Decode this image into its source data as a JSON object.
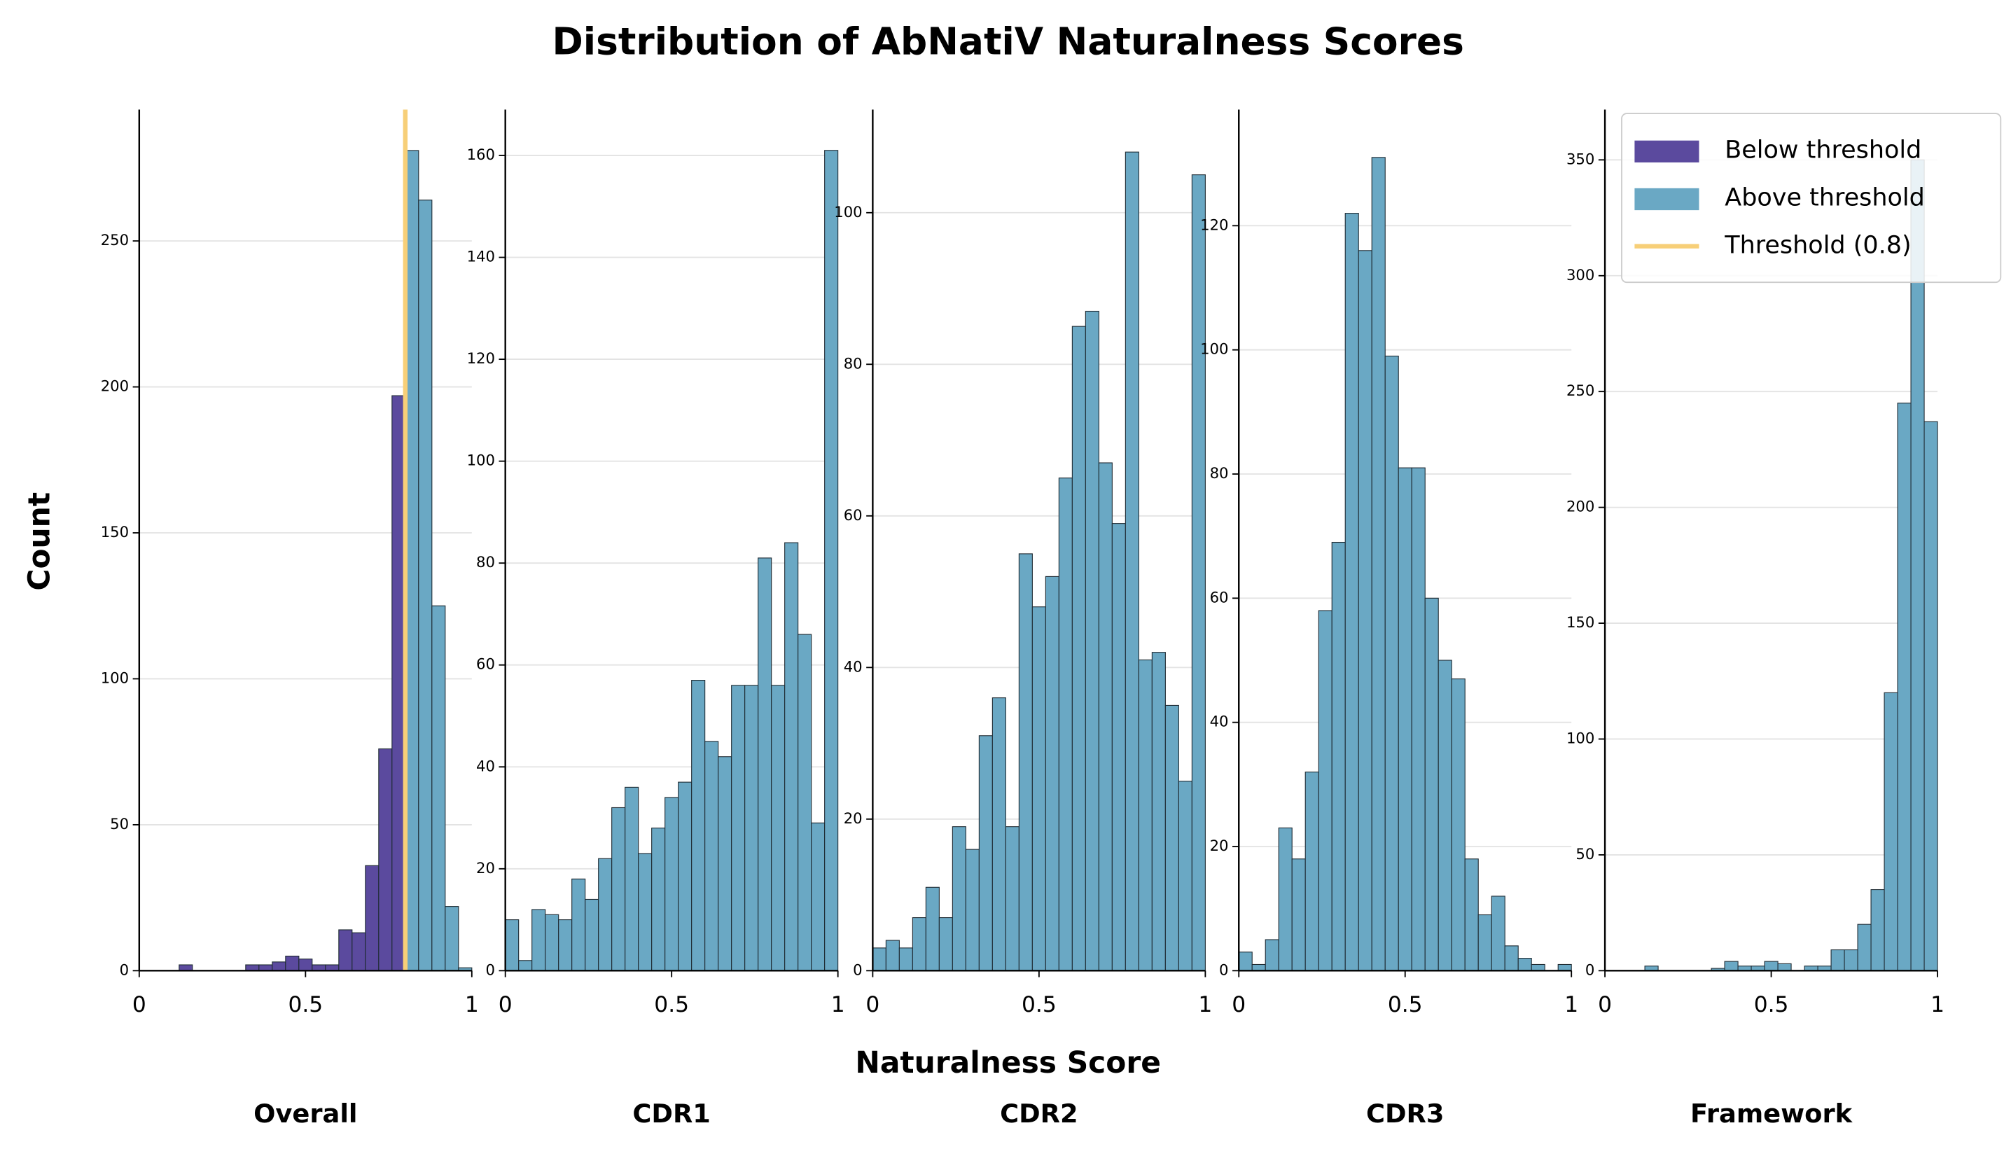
{
  "figure": {
    "title": "Distribution of AbNatiV Naturalness Scores",
    "xlabel": "Naturalness Score",
    "ylabel": "Count",
    "legend": "upper right"
  },
  "chart_data": [
    {
      "type": "histogram",
      "label": "Overall",
      "bins": [
        0.12,
        0.16,
        0.2,
        0.24,
        0.28,
        0.32,
        0.36,
        0.4,
        0.44,
        0.48,
        0.52,
        0.56,
        0.6,
        0.64,
        0.68,
        0.72,
        0.76,
        0.8,
        0.84,
        0.88,
        0.92,
        0.96,
        1.0
      ],
      "series": [
        {
          "name": "Below threshold",
          "color": "#5b4a9e",
          "values": [
            2,
            0,
            0,
            0,
            0,
            2,
            2,
            3,
            5,
            4,
            2,
            2,
            14,
            13,
            36,
            76,
            197,
            null,
            null,
            null,
            null,
            null
          ]
        },
        {
          "name": "Above threshold",
          "color": "#6aa8c4",
          "values": [
            null,
            null,
            null,
            null,
            null,
            null,
            null,
            null,
            null,
            null,
            null,
            null,
            null,
            null,
            null,
            null,
            null,
            281,
            264,
            125,
            22,
            1
          ]
        }
      ],
      "threshold": {
        "name": "Threshold (0.8)",
        "value": 0.8,
        "color": "#f7cf78"
      },
      "xlim": [
        0,
        1
      ],
      "xticks": [
        0,
        0.5,
        1
      ],
      "ylim": [
        0,
        295
      ],
      "yticks": [
        0,
        50,
        100,
        150,
        200,
        250
      ],
      "grid": true
    },
    {
      "type": "histogram",
      "label": "CDR1",
      "bins": [
        0,
        0.04,
        0.08,
        0.12,
        0.16,
        0.2,
        0.24,
        0.28,
        0.32,
        0.36,
        0.4,
        0.44,
        0.48,
        0.52,
        0.56,
        0.6,
        0.64,
        0.68,
        0.72,
        0.76,
        0.8,
        0.84,
        0.88,
        0.92,
        0.96,
        1
      ],
      "series": [
        {
          "color": "#6aa8c4",
          "values": [
            10,
            2,
            12,
            11,
            10,
            18,
            14,
            22,
            32,
            36,
            23,
            28,
            34,
            37,
            57,
            45,
            42,
            56,
            56,
            81,
            56,
            84,
            66,
            29,
            161
          ]
        }
      ],
      "xlim": [
        0,
        1
      ],
      "xticks": [
        0,
        0.5,
        1
      ],
      "ylim": [
        0,
        169
      ],
      "yticks": [
        0,
        20,
        40,
        60,
        80,
        100,
        120,
        140,
        160
      ],
      "grid": true
    },
    {
      "type": "histogram",
      "label": "CDR2",
      "bins": [
        0,
        0.04,
        0.08,
        0.12,
        0.16,
        0.2,
        0.24,
        0.28,
        0.32,
        0.36,
        0.4,
        0.44,
        0.48,
        0.52,
        0.56,
        0.6,
        0.64,
        0.68,
        0.72,
        0.76,
        0.8,
        0.84,
        0.88,
        0.92,
        0.96,
        1
      ],
      "series": [
        {
          "color": "#6aa8c4",
          "values": [
            3,
            4,
            3,
            7,
            11,
            7,
            19,
            16,
            31,
            36,
            19,
            55,
            48,
            52,
            65,
            85,
            87,
            67,
            59,
            108,
            41,
            42,
            35,
            25,
            105
          ]
        }
      ],
      "xlim": [
        0,
        1
      ],
      "xticks": [
        0,
        0.5,
        1
      ],
      "ylim": [
        0,
        113.6
      ],
      "yticks": [
        0,
        20,
        40,
        60,
        80,
        100
      ],
      "grid": true
    },
    {
      "type": "histogram",
      "label": "CDR3",
      "bins": [
        0,
        0.04,
        0.08,
        0.12,
        0.16,
        0.2,
        0.24,
        0.28,
        0.32,
        0.36,
        0.4,
        0.44,
        0.48,
        0.52,
        0.56,
        0.6,
        0.64,
        0.68,
        0.72,
        0.76,
        0.8,
        0.84,
        0.88,
        0.92,
        0.96,
        1
      ],
      "series": [
        {
          "color": "#6aa8c4",
          "values": [
            3,
            1,
            5,
            23,
            18,
            32,
            58,
            69,
            122,
            116,
            131,
            99,
            81,
            81,
            60,
            50,
            47,
            18,
            9,
            12,
            4,
            2,
            1,
            0,
            1
          ]
        }
      ],
      "xlim": [
        0,
        1
      ],
      "xticks": [
        0,
        0.5,
        1
      ],
      "ylim": [
        0,
        138.7
      ],
      "yticks": [
        0,
        20,
        40,
        60,
        80,
        100,
        120
      ],
      "grid": true
    },
    {
      "type": "histogram",
      "label": "Framework",
      "bins": [
        0.12,
        0.16,
        0.2,
        0.24,
        0.28,
        0.32,
        0.36,
        0.4,
        0.44,
        0.48,
        0.52,
        0.56,
        0.6,
        0.64,
        0.68,
        0.72,
        0.76,
        0.8,
        0.84,
        0.88,
        0.92,
        0.96,
        1.0
      ],
      "series": [
        {
          "color": "#6aa8c4",
          "values": [
            2,
            0,
            0,
            0,
            0,
            1,
            4,
            2,
            2,
            4,
            3,
            0,
            2,
            2,
            9,
            9,
            20,
            35,
            120,
            245,
            350,
            237
          ]
        }
      ],
      "xlim": [
        0,
        1
      ],
      "xticks": [
        0,
        0.5,
        1
      ],
      "ylim": [
        0,
        371.7
      ],
      "yticks": [
        0,
        50,
        100,
        150,
        200,
        250,
        300,
        350
      ],
      "grid": true
    }
  ]
}
